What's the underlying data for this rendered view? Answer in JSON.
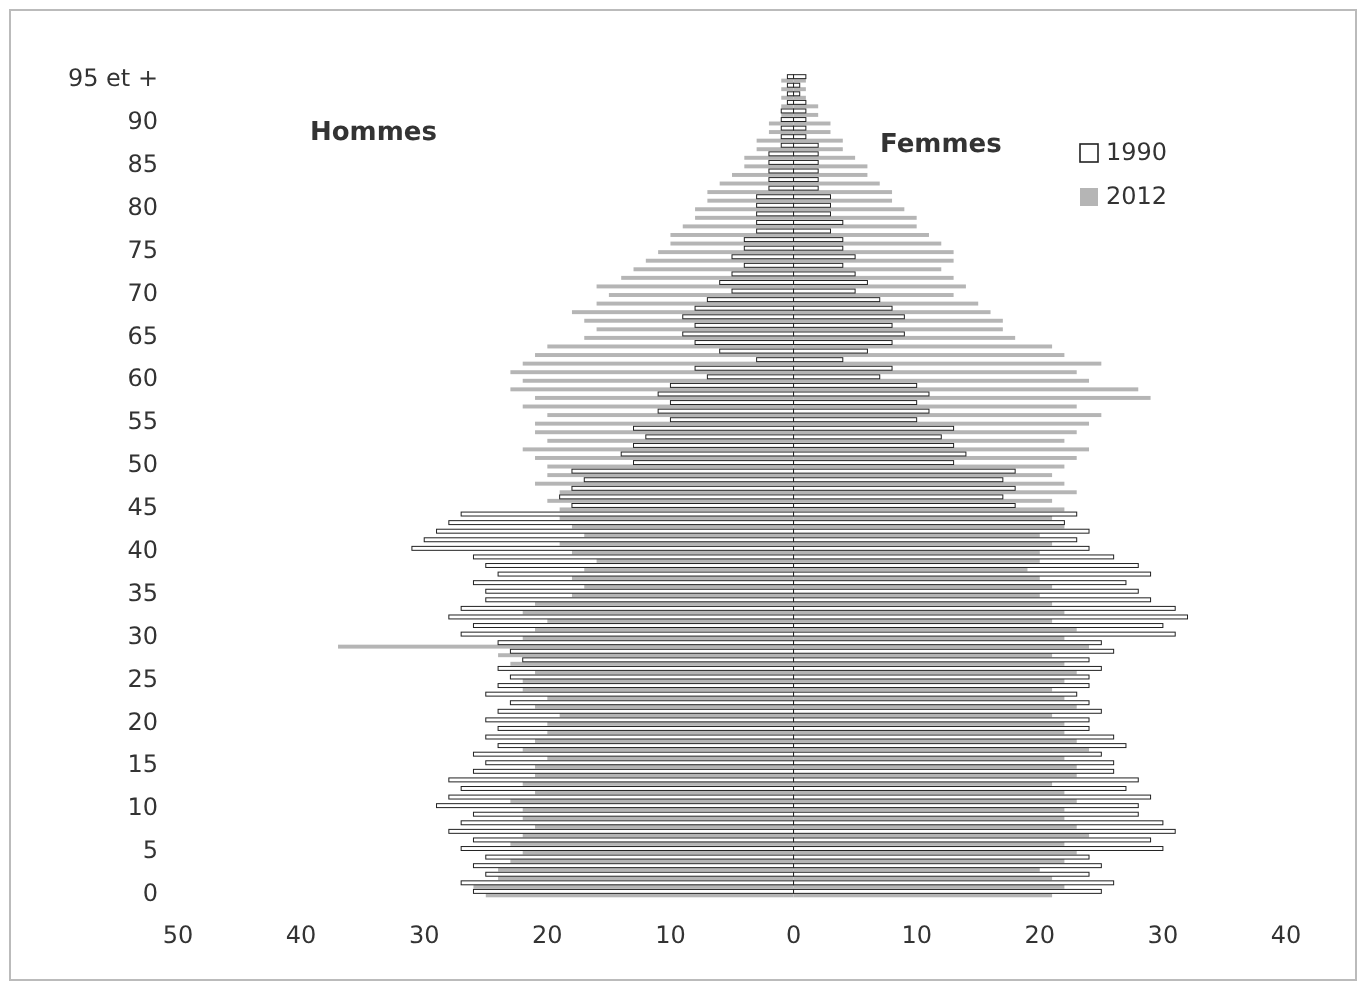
{
  "chart_data": {
    "type": "bar",
    "orientation": "horizontal",
    "annotations": [
      "Hommes",
      "Femmes"
    ],
    "categories": [
      "95 et +",
      null,
      null,
      null,
      null,
      "90",
      null,
      null,
      null,
      null,
      "85",
      null,
      null,
      null,
      null,
      "80",
      null,
      null,
      null,
      null,
      "75",
      null,
      null,
      null,
      null,
      "70",
      null,
      null,
      null,
      null,
      "65",
      null,
      null,
      null,
      null,
      "60",
      null,
      null,
      null,
      null,
      "55",
      null,
      null,
      null,
      null,
      "50",
      null,
      null,
      null,
      null,
      "45",
      null,
      null,
      null,
      null,
      "40",
      null,
      null,
      null,
      null,
      "35",
      null,
      null,
      null,
      null,
      "30",
      null,
      null,
      null,
      null,
      "25",
      null,
      null,
      null,
      null,
      "20",
      null,
      null,
      null,
      null,
      "15",
      null,
      null,
      null,
      null,
      "10",
      null,
      null,
      null,
      null,
      "5",
      null,
      null,
      null,
      null,
      "0"
    ],
    "series": [
      {
        "color": "#b5b5b5",
        "values": [
          -1,
          -1,
          -1,
          -1,
          -1,
          -2,
          -2,
          -3,
          -3,
          -4,
          -4,
          -5,
          -6,
          -7,
          -7,
          -8,
          -8,
          -9,
          -10,
          -10,
          -11,
          -12,
          -13,
          -14,
          -16,
          -15,
          -16,
          -18,
          -17,
          -16,
          -17,
          -20,
          -21,
          -22,
          -23,
          -22,
          -23,
          -21,
          -22,
          -20,
          -21,
          -21,
          -20,
          -22,
          -21,
          -20,
          -20,
          -21,
          -19,
          -20,
          -19,
          -19,
          -18,
          -17,
          -19,
          -18,
          -16,
          -17,
          -18,
          -17,
          -18,
          -21,
          -22,
          -20,
          -21,
          -22,
          -37,
          -24,
          -23,
          -21,
          -22,
          -22,
          -20,
          -21,
          -19,
          -20,
          -20,
          -21,
          -22,
          -20,
          -21,
          -21,
          -22,
          -21,
          -23,
          -22,
          -22,
          -21,
          -22,
          -23,
          -22,
          -23,
          -24,
          -24,
          -26,
          -25
        ]
      },
      {
        "name": "2012",
        "color": "#b5b5b5",
        "values": [
          1,
          1,
          1,
          2,
          2,
          3,
          3,
          4,
          4,
          5,
          6,
          6,
          7,
          8,
          8,
          9,
          10,
          10,
          11,
          12,
          13,
          13,
          12,
          13,
          14,
          13,
          15,
          16,
          17,
          17,
          18,
          21,
          22,
          25,
          23,
          24,
          28,
          29,
          23,
          25,
          24,
          23,
          22,
          24,
          23,
          22,
          21,
          22,
          23,
          21,
          22,
          21,
          22,
          20,
          21,
          20,
          20,
          19,
          20,
          21,
          20,
          21,
          22,
          21,
          23,
          22,
          24,
          21,
          22,
          23,
          22,
          21,
          22,
          23,
          21,
          22,
          22,
          23,
          24,
          22,
          23,
          23,
          21,
          22,
          23,
          22,
          22,
          23,
          24,
          22,
          23,
          22,
          20,
          21,
          22,
          21
        ]
      },
      {
        "color": "#222222",
        "values": [
          -0.5,
          -0.5,
          -0.5,
          -0.5,
          -1,
          -1,
          -1,
          -1,
          -1,
          -2,
          -2,
          -2,
          -2,
          -2,
          -3,
          -3,
          -3,
          -3,
          -3,
          -4,
          -4,
          -5,
          -4,
          -5,
          -6,
          -5,
          -7,
          -8,
          -9,
          -8,
          -9,
          -8,
          -6,
          -3,
          -8,
          -7,
          -10,
          -11,
          -10,
          -11,
          -10,
          -13,
          -12,
          -13,
          -14,
          -13,
          -18,
          -17,
          -18,
          -19,
          -18,
          -27,
          -28,
          -29,
          -30,
          -31,
          -26,
          -25,
          -24,
          -26,
          -25,
          -25,
          -27,
          -28,
          -26,
          -27,
          -24,
          -23,
          -22,
          -24,
          -23,
          -24,
          -25,
          -23,
          -24,
          -25,
          -24,
          -25,
          -24,
          -26,
          -25,
          -26,
          -28,
          -27,
          -28,
          -29,
          -26,
          -27,
          -28,
          -26,
          -27,
          -25,
          -26,
          -25,
          -27,
          -26
        ]
      },
      {
        "name": "1990",
        "color": "#222222",
        "values": [
          1,
          0.5,
          0.5,
          1,
          1,
          1,
          1,
          1,
          2,
          2,
          2,
          2,
          2,
          2,
          3,
          3,
          3,
          4,
          3,
          4,
          4,
          5,
          4,
          5,
          6,
          5,
          7,
          8,
          9,
          8,
          9,
          8,
          6,
          4,
          8,
          7,
          10,
          11,
          10,
          11,
          10,
          13,
          12,
          13,
          14,
          13,
          18,
          17,
          18,
          17,
          18,
          23,
          22,
          24,
          23,
          24,
          26,
          28,
          29,
          27,
          28,
          29,
          31,
          32,
          30,
          31,
          25,
          26,
          24,
          25,
          24,
          24,
          23,
          24,
          25,
          24,
          24,
          26,
          27,
          25,
          26,
          26,
          28,
          27,
          29,
          28,
          28,
          30,
          31,
          29,
          30,
          24,
          25,
          24,
          26,
          25
        ]
      }
    ],
    "xlim": [
      -50,
      40
    ],
    "xticks": [
      {
        "value": -50,
        "label": "50"
      },
      {
        "value": -40,
        "label": "40"
      },
      {
        "value": -30,
        "label": "30"
      },
      {
        "value": -20,
        "label": "20"
      },
      {
        "value": -10,
        "label": "10"
      },
      0,
      10,
      20,
      30,
      40
    ],
    "legend": "top right"
  }
}
